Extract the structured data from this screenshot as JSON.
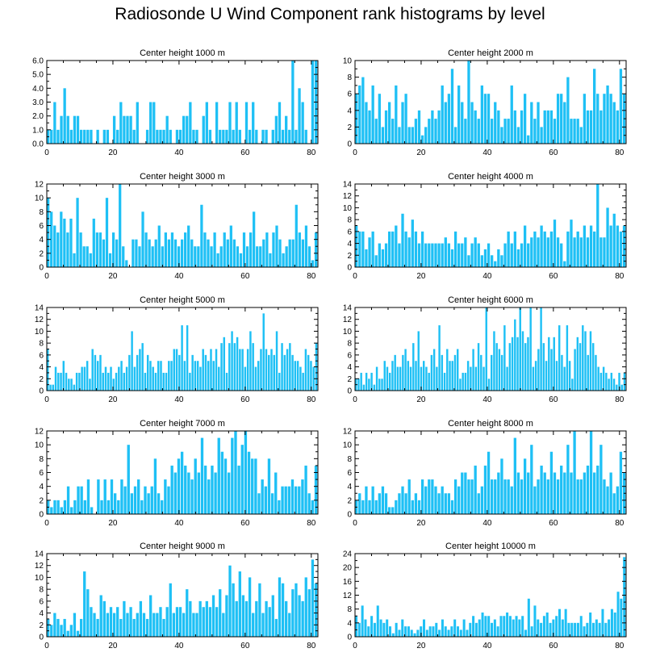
{
  "figure_title": "Radiosonde U Wind Component rank histograms by level",
  "colors": {
    "bar": "#1ec0f5",
    "axis": "#000000"
  },
  "chart_data": [
    {
      "type": "bar",
      "title": "Center height 1000 m",
      "xlim": [
        0,
        82
      ],
      "ylim": [
        0,
        6
      ],
      "xticks": [
        0,
        20,
        40,
        60,
        80
      ],
      "yticks": [
        "0.0",
        "1.0",
        "2.0",
        "3.0",
        "4.0",
        "5.0",
        "6.0"
      ],
      "values": [
        1,
        1,
        3,
        1,
        2,
        4,
        2,
        1,
        2,
        2,
        1,
        1,
        1,
        1,
        0,
        1,
        0,
        1,
        1,
        0,
        2,
        1,
        3,
        2,
        2,
        2,
        1,
        3,
        0,
        0,
        1,
        3,
        3,
        1,
        1,
        1,
        2,
        1,
        0,
        1,
        1,
        2,
        2,
        3,
        1,
        1,
        0,
        2,
        3,
        1,
        0,
        3,
        1,
        1,
        1,
        3,
        1,
        3,
        1,
        0,
        3,
        1,
        3,
        1,
        0,
        1,
        1,
        0,
        1,
        2,
        3,
        1,
        2,
        1,
        6,
        1,
        4,
        3,
        1,
        0,
        6,
        6
      ]
    },
    {
      "type": "bar",
      "title": "Center height 2000 m",
      "xlim": [
        0,
        82
      ],
      "ylim": [
        0,
        10
      ],
      "xticks": [
        0,
        20,
        40,
        60,
        80
      ],
      "yticks": [
        "0",
        "2",
        "4",
        "6",
        "8",
        "10"
      ],
      "values": [
        6,
        7,
        8,
        5,
        4,
        7,
        3,
        6,
        2,
        4,
        5,
        3,
        7,
        2,
        5,
        6,
        2,
        2,
        3,
        4,
        1,
        2,
        3,
        4,
        3,
        4,
        7,
        5,
        6,
        9,
        2,
        7,
        5,
        3,
        10,
        5,
        4,
        3,
        7,
        6,
        6,
        3,
        5,
        4,
        2,
        3,
        3,
        7,
        4,
        2,
        4,
        6,
        1,
        5,
        3,
        5,
        2,
        4,
        4,
        4,
        3,
        6,
        6,
        5,
        8,
        3,
        3,
        3,
        2,
        6,
        4,
        4,
        9,
        6,
        4,
        6,
        7,
        6,
        5,
        4,
        9,
        6
      ]
    },
    {
      "type": "bar",
      "title": "Center height 3000 m",
      "xlim": [
        0,
        82
      ],
      "ylim": [
        0,
        12
      ],
      "xticks": [
        0,
        20,
        40,
        60,
        80
      ],
      "yticks": [
        "0",
        "2",
        "4",
        "6",
        "8",
        "10",
        "12"
      ],
      "values": [
        10,
        8,
        6,
        5,
        8,
        7,
        5,
        7,
        2,
        10,
        5,
        3,
        3,
        2,
        7,
        5,
        5,
        4,
        10,
        2,
        5,
        4,
        12,
        3,
        1,
        0,
        4,
        4,
        3,
        8,
        5,
        4,
        3,
        4,
        6,
        3,
        5,
        4,
        5,
        4,
        3,
        4,
        5,
        6,
        4,
        3,
        3,
        9,
        5,
        4,
        3,
        5,
        2,
        3,
        5,
        4,
        6,
        4,
        3,
        2,
        5,
        3,
        5,
        8,
        3,
        3,
        4,
        5,
        2,
        5,
        6,
        4,
        2,
        3,
        4,
        4,
        9,
        5,
        4,
        6,
        3,
        1,
        5
      ]
    },
    {
      "type": "bar",
      "title": "Center height 4000 m",
      "xlim": [
        0,
        82
      ],
      "ylim": [
        0,
        14
      ],
      "xticks": [
        0,
        20,
        40,
        60,
        80
      ],
      "yticks": [
        "0",
        "2",
        "4",
        "6",
        "8",
        "10",
        "12",
        "14"
      ],
      "values": [
        7,
        6,
        6,
        3,
        5,
        6,
        2,
        4,
        3,
        4,
        6,
        6,
        7,
        4,
        9,
        6,
        5,
        8,
        6,
        4,
        6,
        4,
        4,
        4,
        4,
        4,
        4,
        5,
        4,
        3,
        6,
        4,
        4,
        5,
        2,
        4,
        5,
        4,
        2,
        3,
        4,
        2,
        1,
        3,
        2,
        4,
        6,
        4,
        6,
        3,
        4,
        7,
        4,
        5,
        6,
        5,
        7,
        6,
        5,
        6,
        8,
        5,
        4,
        1,
        6,
        8,
        5,
        6,
        5,
        7,
        5,
        7,
        6,
        14,
        5,
        5,
        10,
        7,
        9,
        7,
        6,
        7
      ]
    },
    {
      "type": "bar",
      "title": "Center height 5000 m",
      "xlim": [
        0,
        82
      ],
      "ylim": [
        0,
        14
      ],
      "xticks": [
        0,
        20,
        40,
        60,
        80
      ],
      "yticks": [
        "0",
        "2",
        "4",
        "6",
        "8",
        "10",
        "12",
        "14"
      ],
      "values": [
        7,
        1,
        1,
        4,
        3,
        3,
        5,
        3,
        2,
        2,
        1,
        3,
        3,
        4,
        4,
        5,
        2,
        7,
        6,
        5,
        6,
        3,
        4,
        3,
        4,
        2,
        3,
        4,
        5,
        3,
        4,
        6,
        10,
        4,
        6,
        7,
        8,
        3,
        6,
        5,
        4,
        3,
        5,
        5,
        3,
        3,
        5,
        5,
        7,
        7,
        6,
        11,
        5,
        11,
        3,
        6,
        5,
        5,
        4,
        7,
        6,
        5,
        7,
        5,
        7,
        4,
        8,
        9,
        3,
        8,
        10,
        8,
        9,
        7,
        7,
        4,
        7,
        10,
        8,
        4,
        5,
        7,
        13,
        7,
        6,
        7,
        6,
        10,
        3,
        8,
        6,
        7,
        8,
        6,
        5,
        5,
        4,
        3,
        7,
        6,
        5,
        4,
        8
      ]
    },
    {
      "type": "bar",
      "title": "Center height 6000 m",
      "xlim": [
        0,
        82
      ],
      "ylim": [
        0,
        14
      ],
      "xticks": [
        0,
        20,
        40,
        60,
        80
      ],
      "yticks": [
        "0",
        "2",
        "4",
        "6",
        "8",
        "10",
        "12",
        "14"
      ],
      "values": [
        2,
        2,
        3,
        1,
        3,
        2,
        3,
        1,
        4,
        2,
        2,
        5,
        4,
        3,
        5,
        6,
        4,
        4,
        6,
        7,
        5,
        4,
        8,
        5,
        10,
        4,
        5,
        4,
        3,
        6,
        7,
        4,
        11,
        6,
        3,
        7,
        5,
        5,
        6,
        7,
        2,
        3,
        3,
        5,
        4,
        7,
        4,
        8,
        6,
        4,
        14,
        2,
        6,
        10,
        8,
        7,
        6,
        11,
        4,
        8,
        9,
        12,
        9,
        14,
        10,
        8,
        9,
        14,
        4,
        5,
        7,
        14,
        8,
        5,
        9,
        7,
        9,
        5,
        11,
        6,
        4,
        11,
        5,
        2,
        7,
        9,
        8,
        11,
        10,
        6,
        10,
        8,
        6,
        4,
        3,
        4,
        3,
        2,
        3,
        2,
        1,
        3,
        1,
        3
      ]
    },
    {
      "type": "bar",
      "title": "Center height 7000 m",
      "xlim": [
        0,
        82
      ],
      "ylim": [
        0,
        12
      ],
      "xticks": [
        0,
        20,
        40,
        60,
        80
      ],
      "yticks": [
        "0",
        "2",
        "4",
        "6",
        "8",
        "10",
        "12"
      ],
      "values": [
        2,
        1,
        2,
        2,
        1,
        2,
        4,
        1,
        2,
        4,
        4,
        2,
        5,
        1,
        0,
        5,
        2,
        5,
        2,
        5,
        3,
        2,
        5,
        4,
        10,
        3,
        4,
        5,
        2,
        4,
        3,
        4,
        8,
        3,
        2,
        5,
        4,
        7,
        6,
        8,
        9,
        7,
        6,
        5,
        8,
        6,
        11,
        7,
        5,
        7,
        6,
        11,
        9,
        8,
        6,
        11,
        12,
        7,
        10,
        12,
        9,
        8,
        8,
        3,
        5,
        4,
        8,
        3,
        6,
        2,
        4,
        4,
        4,
        5,
        4,
        4,
        5,
        7,
        3,
        2,
        7
      ]
    },
    {
      "type": "bar",
      "title": "Center height 8000 m",
      "xlim": [
        0,
        82
      ],
      "ylim": [
        0,
        12
      ],
      "xticks": [
        0,
        20,
        40,
        60,
        80
      ],
      "yticks": [
        "0",
        "2",
        "4",
        "6",
        "8",
        "10",
        "12"
      ],
      "values": [
        2,
        3,
        2,
        4,
        2,
        4,
        2,
        3,
        4,
        3,
        1,
        1,
        2,
        3,
        4,
        3,
        5,
        2,
        3,
        2,
        5,
        4,
        5,
        5,
        4,
        3,
        4,
        3,
        3,
        2,
        5,
        4,
        6,
        6,
        5,
        5,
        7,
        3,
        4,
        7,
        9,
        5,
        5,
        6,
        8,
        5,
        5,
        4,
        11,
        6,
        5,
        8,
        6,
        10,
        4,
        5,
        7,
        6,
        5,
        9,
        6,
        5,
        7,
        6,
        10,
        6,
        12,
        5,
        5,
        6,
        7,
        12,
        6,
        7,
        10,
        5,
        4,
        6,
        3,
        4,
        9,
        6
      ]
    },
    {
      "type": "bar",
      "title": "Center height 9000 m",
      "xlim": [
        0,
        82
      ],
      "ylim": [
        0,
        14
      ],
      "xticks": [
        0,
        20,
        40,
        60,
        80
      ],
      "yticks": [
        "0",
        "2",
        "4",
        "6",
        "8",
        "10",
        "12",
        "14"
      ],
      "values": [
        3,
        2,
        4,
        3,
        2,
        3,
        1,
        2,
        4,
        1,
        3,
        11,
        8,
        5,
        4,
        3,
        7,
        6,
        4,
        5,
        4,
        5,
        3,
        6,
        4,
        5,
        3,
        4,
        6,
        4,
        3,
        7,
        4,
        4,
        5,
        3,
        5,
        9,
        4,
        5,
        5,
        4,
        8,
        6,
        4,
        4,
        6,
        5,
        6,
        5,
        7,
        5,
        8,
        4,
        7,
        12,
        9,
        6,
        11,
        7,
        6,
        10,
        4,
        6,
        9,
        4,
        6,
        5,
        7,
        3,
        10,
        9,
        6,
        4,
        8,
        9,
        7,
        6,
        10,
        8,
        13,
        9
      ]
    },
    {
      "type": "bar",
      "title": "Center height 10000 m",
      "xlim": [
        0,
        82
      ],
      "ylim": [
        0,
        24
      ],
      "xticks": [
        0,
        20,
        40,
        60,
        80
      ],
      "yticks": [
        "0",
        "4",
        "8",
        "12",
        "16",
        "20",
        "24"
      ],
      "values": [
        6,
        4,
        9,
        5,
        3,
        6,
        4,
        9,
        5,
        4,
        5,
        3,
        1,
        4,
        2,
        5,
        3,
        3,
        2,
        1,
        2,
        3,
        5,
        2,
        3,
        3,
        4,
        2,
        5,
        3,
        2,
        3,
        5,
        3,
        2,
        5,
        2,
        4,
        6,
        4,
        5,
        7,
        6,
        6,
        4,
        5,
        3,
        6,
        6,
        7,
        6,
        5,
        6,
        5,
        6,
        2,
        11,
        3,
        9,
        5,
        4,
        6,
        7,
        4,
        5,
        6,
        8,
        5,
        8,
        4,
        4,
        4,
        4,
        6,
        3,
        4,
        7,
        4,
        5,
        4,
        8,
        4,
        5,
        8,
        7,
        13,
        11,
        23
      ]
    }
  ]
}
